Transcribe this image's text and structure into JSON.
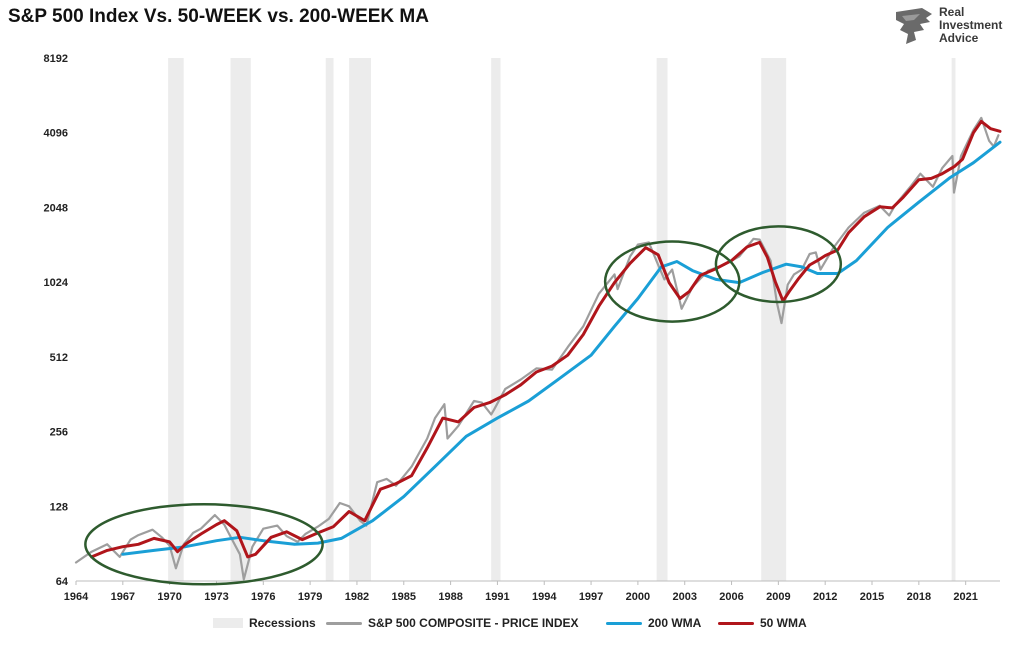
{
  "header": {
    "title": "S&P 500 Index Vs. 50-WEEK vs. 200-WEEK MA"
  },
  "logo": {
    "line1": "Real",
    "line2": "Investment",
    "line3": "Advice"
  },
  "colors": {
    "price": "#9e9e9e",
    "ma200": "#1a9fd6",
    "ma50": "#b0151b",
    "recession": "#ececec",
    "circle": "#2e5b2e"
  },
  "legend": {
    "recessions": "Recessions",
    "price": "S&P 500 COMPOSITE - PRICE INDEX",
    "ma200": "200 WMA",
    "ma50": "50 WMA"
  },
  "chart_data": {
    "type": "line",
    "title": "S&P 500 Index Vs. 50-WEEK vs. 200-WEEK MA",
    "y_scale": "log2",
    "ylim": [
      64,
      8192
    ],
    "xlim": [
      1964,
      2023.2
    ],
    "y_ticks": [
      "64",
      "128",
      "256",
      "512",
      "1024",
      "2048",
      "4096",
      "8192"
    ],
    "x_ticks": [
      "1964",
      "1967",
      "1970",
      "1973",
      "1976",
      "1979",
      "1982",
      "1985",
      "1988",
      "1991",
      "1994",
      "1997",
      "2000",
      "2003",
      "2006",
      "2009",
      "2012",
      "2015",
      "2018",
      "2021"
    ],
    "recessions": [
      [
        1969.9,
        1970.9
      ],
      [
        1973.9,
        1975.2
      ],
      [
        1980.0,
        1980.5
      ],
      [
        1981.5,
        1982.9
      ],
      [
        1990.6,
        1991.2
      ],
      [
        2001.2,
        2001.9
      ],
      [
        2007.9,
        2009.5
      ],
      [
        2020.1,
        2020.35
      ]
    ],
    "series": [
      {
        "name": "S&P 500 COMPOSITE - PRICE INDEX",
        "x": [
          1964,
          1965,
          1966,
          1966.8,
          1967.5,
          1968,
          1968.9,
          1969.5,
          1970,
          1970.4,
          1970.9,
          1971.5,
          1972,
          1972.9,
          1973.5,
          1974,
          1974.5,
          1974.75,
          1975.3,
          1976,
          1976.9,
          1977.5,
          1978.2,
          1978.7,
          1979.5,
          1980.2,
          1980.9,
          1981.5,
          1982.2,
          1982.6,
          1983.3,
          1983.9,
          1984.5,
          1985.5,
          1986.5,
          1987,
          1987.6,
          1987.8,
          1988.5,
          1989.5,
          1990,
          1990.6,
          1990.8,
          1991.5,
          1992.5,
          1993.5,
          1994.5,
          1995.5,
          1996.5,
          1997.5,
          1998.5,
          1998.7,
          1999.5,
          2000,
          2000.7,
          2001.3,
          2001.7,
          2002.2,
          2002.8,
          2003.5,
          2004.5,
          2005.5,
          2006.5,
          2007.4,
          2007.8,
          2008.5,
          2008.9,
          2009.2,
          2009.6,
          2010,
          2010.5,
          2011,
          2011.4,
          2011.7,
          2012.5,
          2013.5,
          2014.5,
          2015.5,
          2016.1,
          2016.5,
          2017.5,
          2018.1,
          2018.9,
          2019.5,
          2020.15,
          2020.25,
          2020.7,
          2021.5,
          2022,
          2022.5,
          2022.8,
          2023.1
        ],
        "values": [
          76,
          84,
          90,
          80,
          94,
          98,
          103,
          96,
          89,
          72,
          90,
          100,
          104,
          118,
          108,
          94,
          82,
          65,
          88,
          104,
          107,
          97,
          92,
          99,
          106,
          114,
          132,
          128,
          112,
          107,
          160,
          165,
          155,
          185,
          240,
          290,
          330,
          240,
          270,
          340,
          335,
          300,
          315,
          380,
          415,
          460,
          455,
          560,
          680,
          920,
          1100,
          960,
          1300,
          1450,
          1480,
          1200,
          1050,
          1150,
          800,
          980,
          1140,
          1200,
          1300,
          1530,
          1520,
          1250,
          850,
          700,
          1000,
          1100,
          1150,
          1330,
          1350,
          1150,
          1400,
          1700,
          1950,
          2080,
          1900,
          2100,
          2500,
          2800,
          2480,
          2950,
          3300,
          2350,
          3300,
          4200,
          4700,
          3800,
          3600,
          4000
        ]
      },
      {
        "name": "200 WMA",
        "x": [
          1967,
          1969,
          1971,
          1973,
          1974.5,
          1976,
          1978,
          1979.5,
          1981,
          1983,
          1985,
          1987,
          1989,
          1991,
          1993,
          1995,
          1997,
          1998.5,
          2000,
          2001.5,
          2002.5,
          2003.5,
          2005,
          2006.5,
          2008,
          2009.5,
          2010.5,
          2011.5,
          2012.8,
          2014,
          2016,
          2018,
          2020,
          2021.5,
          2023.2
        ],
        "values": [
          82,
          85,
          88,
          93,
          96,
          93,
          90,
          91,
          95,
          112,
          140,
          185,
          245,
          290,
          340,
          420,
          520,
          680,
          880,
          1180,
          1240,
          1140,
          1050,
          1020,
          1120,
          1210,
          1180,
          1110,
          1110,
          1250,
          1700,
          2150,
          2700,
          3100,
          3750
        ]
      },
      {
        "name": "50 WMA",
        "x": [
          1965,
          1966,
          1967,
          1968,
          1969,
          1970,
          1970.5,
          1971,
          1972,
          1973,
          1973.5,
          1974.3,
          1975,
          1975.5,
          1976.5,
          1977.5,
          1978.5,
          1979.5,
          1980.5,
          1981.5,
          1982.5,
          1983.5,
          1984.5,
          1985.5,
          1986.5,
          1987.5,
          1988.5,
          1989.5,
          1990.5,
          1991.5,
          1992.5,
          1993.5,
          1994.5,
          1995.5,
          1996.5,
          1997.5,
          1998.5,
          1999.5,
          2000.5,
          2001.3,
          2002,
          2002.7,
          2003.3,
          2004,
          2005,
          2006,
          2007,
          2007.8,
          2008.3,
          2008.8,
          2009.3,
          2009.7,
          2010.3,
          2011,
          2011.5,
          2012,
          2012.8,
          2013.5,
          2014.5,
          2015.5,
          2016.3,
          2017,
          2018,
          2018.8,
          2019.5,
          2020.3,
          2020.8,
          2021.5,
          2022,
          2022.6,
          2023.2
        ],
        "values": [
          80,
          85,
          88,
          90,
          95,
          92,
          84,
          90,
          99,
          108,
          112,
          102,
          80,
          82,
          96,
          101,
          94,
          100,
          106,
          122,
          112,
          150,
          158,
          170,
          220,
          290,
          280,
          320,
          335,
          360,
          395,
          445,
          470,
          520,
          630,
          820,
          1020,
          1220,
          1410,
          1320,
          1020,
          880,
          940,
          1090,
          1160,
          1250,
          1420,
          1480,
          1290,
          1030,
          860,
          940,
          1060,
          1200,
          1250,
          1310,
          1380,
          1620,
          1880,
          2060,
          2040,
          2250,
          2650,
          2680,
          2800,
          3000,
          3200,
          4100,
          4550,
          4250,
          4150
        ]
      }
    ],
    "annotations": [
      {
        "type": "ellipse",
        "center": [
          1972.2,
          90
        ],
        "x_radius": 7.6,
        "y_factor": 1.45
      },
      {
        "type": "ellipse",
        "center": [
          2002.2,
          1030
        ],
        "x_radius": 4.3,
        "y_factor": 1.45
      },
      {
        "type": "ellipse",
        "center": [
          2009.0,
          1210
        ],
        "x_radius": 4.0,
        "y_factor": 1.42
      }
    ]
  }
}
